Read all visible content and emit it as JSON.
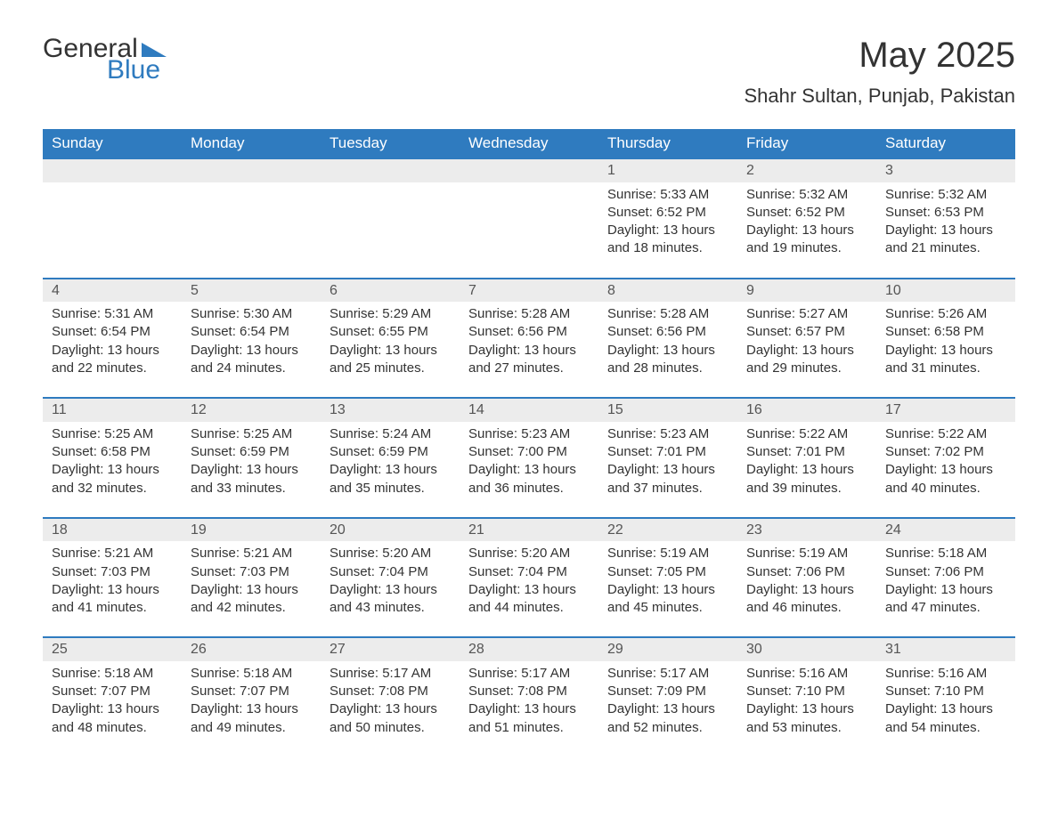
{
  "logo": {
    "word1": "General",
    "word2": "Blue"
  },
  "title": "May 2025",
  "subtitle": "Shahr Sultan, Punjab, Pakistan",
  "colors": {
    "header_bg": "#2f7bbf",
    "header_text": "#ffffff",
    "daynum_bg": "#ececec",
    "daynum_border": "#2f7bbf",
    "body_text": "#333333",
    "background": "#ffffff"
  },
  "typography": {
    "title_fontsize": 40,
    "subtitle_fontsize": 22,
    "header_fontsize": 17,
    "cell_fontsize": 15,
    "font_family": "Segoe UI"
  },
  "day_headers": [
    "Sunday",
    "Monday",
    "Tuesday",
    "Wednesday",
    "Thursday",
    "Friday",
    "Saturday"
  ],
  "weeks": [
    [
      null,
      null,
      null,
      null,
      {
        "day": "1",
        "sunrise": "Sunrise: 5:33 AM",
        "sunset": "Sunset: 6:52 PM",
        "daylight1": "Daylight: 13 hours",
        "daylight2": "and 18 minutes."
      },
      {
        "day": "2",
        "sunrise": "Sunrise: 5:32 AM",
        "sunset": "Sunset: 6:52 PM",
        "daylight1": "Daylight: 13 hours",
        "daylight2": "and 19 minutes."
      },
      {
        "day": "3",
        "sunrise": "Sunrise: 5:32 AM",
        "sunset": "Sunset: 6:53 PM",
        "daylight1": "Daylight: 13 hours",
        "daylight2": "and 21 minutes."
      }
    ],
    [
      {
        "day": "4",
        "sunrise": "Sunrise: 5:31 AM",
        "sunset": "Sunset: 6:54 PM",
        "daylight1": "Daylight: 13 hours",
        "daylight2": "and 22 minutes."
      },
      {
        "day": "5",
        "sunrise": "Sunrise: 5:30 AM",
        "sunset": "Sunset: 6:54 PM",
        "daylight1": "Daylight: 13 hours",
        "daylight2": "and 24 minutes."
      },
      {
        "day": "6",
        "sunrise": "Sunrise: 5:29 AM",
        "sunset": "Sunset: 6:55 PM",
        "daylight1": "Daylight: 13 hours",
        "daylight2": "and 25 minutes."
      },
      {
        "day": "7",
        "sunrise": "Sunrise: 5:28 AM",
        "sunset": "Sunset: 6:56 PM",
        "daylight1": "Daylight: 13 hours",
        "daylight2": "and 27 minutes."
      },
      {
        "day": "8",
        "sunrise": "Sunrise: 5:28 AM",
        "sunset": "Sunset: 6:56 PM",
        "daylight1": "Daylight: 13 hours",
        "daylight2": "and 28 minutes."
      },
      {
        "day": "9",
        "sunrise": "Sunrise: 5:27 AM",
        "sunset": "Sunset: 6:57 PM",
        "daylight1": "Daylight: 13 hours",
        "daylight2": "and 29 minutes."
      },
      {
        "day": "10",
        "sunrise": "Sunrise: 5:26 AM",
        "sunset": "Sunset: 6:58 PM",
        "daylight1": "Daylight: 13 hours",
        "daylight2": "and 31 minutes."
      }
    ],
    [
      {
        "day": "11",
        "sunrise": "Sunrise: 5:25 AM",
        "sunset": "Sunset: 6:58 PM",
        "daylight1": "Daylight: 13 hours",
        "daylight2": "and 32 minutes."
      },
      {
        "day": "12",
        "sunrise": "Sunrise: 5:25 AM",
        "sunset": "Sunset: 6:59 PM",
        "daylight1": "Daylight: 13 hours",
        "daylight2": "and 33 minutes."
      },
      {
        "day": "13",
        "sunrise": "Sunrise: 5:24 AM",
        "sunset": "Sunset: 6:59 PM",
        "daylight1": "Daylight: 13 hours",
        "daylight2": "and 35 minutes."
      },
      {
        "day": "14",
        "sunrise": "Sunrise: 5:23 AM",
        "sunset": "Sunset: 7:00 PM",
        "daylight1": "Daylight: 13 hours",
        "daylight2": "and 36 minutes."
      },
      {
        "day": "15",
        "sunrise": "Sunrise: 5:23 AM",
        "sunset": "Sunset: 7:01 PM",
        "daylight1": "Daylight: 13 hours",
        "daylight2": "and 37 minutes."
      },
      {
        "day": "16",
        "sunrise": "Sunrise: 5:22 AM",
        "sunset": "Sunset: 7:01 PM",
        "daylight1": "Daylight: 13 hours",
        "daylight2": "and 39 minutes."
      },
      {
        "day": "17",
        "sunrise": "Sunrise: 5:22 AM",
        "sunset": "Sunset: 7:02 PM",
        "daylight1": "Daylight: 13 hours",
        "daylight2": "and 40 minutes."
      }
    ],
    [
      {
        "day": "18",
        "sunrise": "Sunrise: 5:21 AM",
        "sunset": "Sunset: 7:03 PM",
        "daylight1": "Daylight: 13 hours",
        "daylight2": "and 41 minutes."
      },
      {
        "day": "19",
        "sunrise": "Sunrise: 5:21 AM",
        "sunset": "Sunset: 7:03 PM",
        "daylight1": "Daylight: 13 hours",
        "daylight2": "and 42 minutes."
      },
      {
        "day": "20",
        "sunrise": "Sunrise: 5:20 AM",
        "sunset": "Sunset: 7:04 PM",
        "daylight1": "Daylight: 13 hours",
        "daylight2": "and 43 minutes."
      },
      {
        "day": "21",
        "sunrise": "Sunrise: 5:20 AM",
        "sunset": "Sunset: 7:04 PM",
        "daylight1": "Daylight: 13 hours",
        "daylight2": "and 44 minutes."
      },
      {
        "day": "22",
        "sunrise": "Sunrise: 5:19 AM",
        "sunset": "Sunset: 7:05 PM",
        "daylight1": "Daylight: 13 hours",
        "daylight2": "and 45 minutes."
      },
      {
        "day": "23",
        "sunrise": "Sunrise: 5:19 AM",
        "sunset": "Sunset: 7:06 PM",
        "daylight1": "Daylight: 13 hours",
        "daylight2": "and 46 minutes."
      },
      {
        "day": "24",
        "sunrise": "Sunrise: 5:18 AM",
        "sunset": "Sunset: 7:06 PM",
        "daylight1": "Daylight: 13 hours",
        "daylight2": "and 47 minutes."
      }
    ],
    [
      {
        "day": "25",
        "sunrise": "Sunrise: 5:18 AM",
        "sunset": "Sunset: 7:07 PM",
        "daylight1": "Daylight: 13 hours",
        "daylight2": "and 48 minutes."
      },
      {
        "day": "26",
        "sunrise": "Sunrise: 5:18 AM",
        "sunset": "Sunset: 7:07 PM",
        "daylight1": "Daylight: 13 hours",
        "daylight2": "and 49 minutes."
      },
      {
        "day": "27",
        "sunrise": "Sunrise: 5:17 AM",
        "sunset": "Sunset: 7:08 PM",
        "daylight1": "Daylight: 13 hours",
        "daylight2": "and 50 minutes."
      },
      {
        "day": "28",
        "sunrise": "Sunrise: 5:17 AM",
        "sunset": "Sunset: 7:08 PM",
        "daylight1": "Daylight: 13 hours",
        "daylight2": "and 51 minutes."
      },
      {
        "day": "29",
        "sunrise": "Sunrise: 5:17 AM",
        "sunset": "Sunset: 7:09 PM",
        "daylight1": "Daylight: 13 hours",
        "daylight2": "and 52 minutes."
      },
      {
        "day": "30",
        "sunrise": "Sunrise: 5:16 AM",
        "sunset": "Sunset: 7:10 PM",
        "daylight1": "Daylight: 13 hours",
        "daylight2": "and 53 minutes."
      },
      {
        "day": "31",
        "sunrise": "Sunrise: 5:16 AM",
        "sunset": "Sunset: 7:10 PM",
        "daylight1": "Daylight: 13 hours",
        "daylight2": "and 54 minutes."
      }
    ]
  ]
}
